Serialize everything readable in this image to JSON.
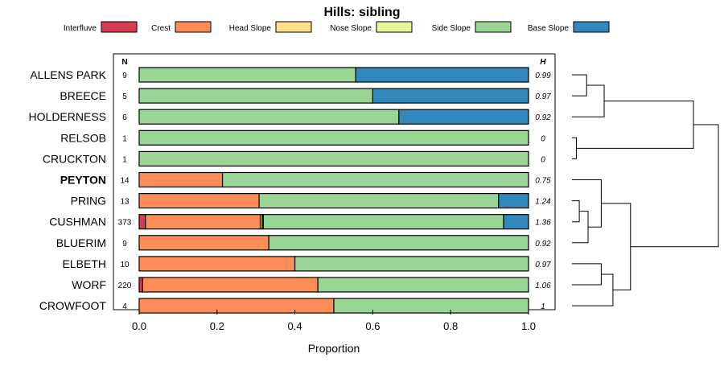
{
  "chart_data": {
    "type": "stacked-bar",
    "orientation": "horizontal",
    "title": "Hills: sibling",
    "xlabel": "Proportion",
    "xlim": [
      0,
      1
    ],
    "xticks": [
      "0.0",
      "0.2",
      "0.4",
      "0.6",
      "0.8",
      "1.0"
    ],
    "n_header": "N",
    "h_header": "H",
    "legend": [
      {
        "name": "Interfluve",
        "color": "#D53E4F"
      },
      {
        "name": "Crest",
        "color": "#FC8D59"
      },
      {
        "name": "Head Slope",
        "color": "#FEE08B"
      },
      {
        "name": "Nose Slope",
        "color": "#E6F598"
      },
      {
        "name": "Side Slope",
        "color": "#99D594"
      },
      {
        "name": "Base Slope",
        "color": "#3288BD"
      }
    ],
    "rows": [
      {
        "label": "ALLENS PARK",
        "bold": false,
        "n": "9",
        "h": "0.99",
        "values": [
          0,
          0,
          0,
          0,
          0.556,
          0.444
        ]
      },
      {
        "label": "BREECE",
        "bold": false,
        "n": "5",
        "h": "0.97",
        "values": [
          0,
          0,
          0,
          0,
          0.6,
          0.4
        ]
      },
      {
        "label": "HOLDERNESS",
        "bold": false,
        "n": "6",
        "h": "0.92",
        "values": [
          0,
          0,
          0,
          0,
          0.667,
          0.333
        ]
      },
      {
        "label": "RELSOB",
        "bold": false,
        "n": "1",
        "h": "0",
        "values": [
          0,
          0,
          0,
          0,
          1,
          0
        ]
      },
      {
        "label": "CRUCKTON",
        "bold": false,
        "n": "1",
        "h": "0",
        "values": [
          0,
          0,
          0,
          0,
          1,
          0
        ]
      },
      {
        "label": "PEYTON",
        "bold": true,
        "n": "14",
        "h": "0.75",
        "values": [
          0,
          0.214,
          0,
          0,
          0.786,
          0
        ]
      },
      {
        "label": "PRING",
        "bold": false,
        "n": "13",
        "h": "1.24",
        "values": [
          0,
          0.308,
          0,
          0,
          0.615,
          0.077
        ]
      },
      {
        "label": "CUSHMAN",
        "bold": false,
        "n": "373",
        "h": "1.36",
        "values": [
          0.016,
          0.295,
          0.005,
          0.003,
          0.617,
          0.064
        ]
      },
      {
        "label": "BLUERIM",
        "bold": false,
        "n": "9",
        "h": "0.92",
        "values": [
          0,
          0.333,
          0,
          0,
          0.667,
          0
        ]
      },
      {
        "label": "ELBETH",
        "bold": false,
        "n": "10",
        "h": "0.97",
        "values": [
          0,
          0.4,
          0,
          0,
          0.6,
          0
        ]
      },
      {
        "label": "WORF",
        "bold": false,
        "n": "220",
        "h": "1.06",
        "values": [
          0.009,
          0.45,
          0,
          0,
          0.541,
          0
        ]
      },
      {
        "label": "CROWFOOT",
        "bold": false,
        "n": "4",
        "h": "1",
        "values": [
          0,
          0.5,
          0,
          0,
          0.5,
          0
        ]
      }
    ],
    "dendrogram": {
      "merges": [
        {
          "a": 0,
          "b": 1,
          "height": 0.1
        },
        {
          "a": 12,
          "b": 2,
          "height": 0.22
        },
        {
          "a": 3,
          "b": 4,
          "height": 0.03
        },
        {
          "a": 13,
          "b": 14,
          "height": 0.83
        },
        {
          "a": 6,
          "b": 7,
          "height": 0.05
        },
        {
          "a": 16,
          "b": 8,
          "height": 0.11
        },
        {
          "a": 5,
          "b": 17,
          "height": 0.2
        },
        {
          "a": 9,
          "b": 10,
          "height": 0.2
        },
        {
          "a": 19,
          "b": 11,
          "height": 0.28
        },
        {
          "a": 18,
          "b": 20,
          "height": 0.4
        },
        {
          "a": 15,
          "b": 21,
          "height": 1.0
        }
      ]
    }
  }
}
